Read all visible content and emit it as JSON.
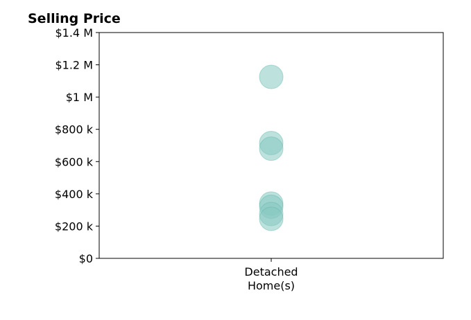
{
  "chart_data": {
    "type": "scatter",
    "title": "Selling Price",
    "categories": [
      "Detached Home(s)"
    ],
    "category_lines": [
      [
        "Detached",
        "Home(s)"
      ]
    ],
    "xlabel": "",
    "ylabel": "",
    "ylim": [
      0,
      1400000
    ],
    "y_ticks": [
      {
        "value": 0,
        "label": "$0"
      },
      {
        "value": 200000,
        "label": "$200 k"
      },
      {
        "value": 400000,
        "label": "$400 k"
      },
      {
        "value": 600000,
        "label": "$600 k"
      },
      {
        "value": 800000,
        "label": "$800 k"
      },
      {
        "value": 1000000,
        "label": "$1 M"
      },
      {
        "value": 1200000,
        "label": "$1.2 M"
      },
      {
        "value": 1400000,
        "label": "$1.4 M"
      }
    ],
    "grid": false,
    "series": [
      {
        "category": "Detached Home(s)",
        "values": [
          1125000,
          715000,
          680000,
          340000,
          320000,
          275000,
          245000
        ]
      }
    ],
    "marker_color": "#86c9c1",
    "marker_edge_color": "#5fb5ab",
    "marker_opacity": 0.55
  }
}
